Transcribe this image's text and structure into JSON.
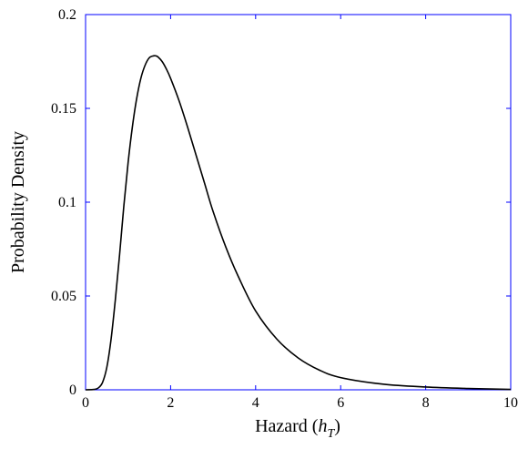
{
  "chart_data": {
    "type": "line",
    "title": "",
    "xlabel": "Hazard (",
    "xlabel_sub": "T",
    "xlabel_var": "h",
    "xlabel_close": ")",
    "ylabel": "Probability Density",
    "xlim": [
      0,
      10
    ],
    "ylim": [
      0,
      0.2
    ],
    "xticks": [
      0,
      2,
      4,
      6,
      8,
      10
    ],
    "xtick_labels": [
      "0",
      "2",
      "4",
      "6",
      "8",
      "10"
    ],
    "yticks": [
      0,
      0.05,
      0.1,
      0.15,
      0.2
    ],
    "ytick_labels": [
      "0",
      "0.05",
      "0.1",
      "0.15",
      "0.2"
    ],
    "grid": false,
    "colors": {
      "axis": "#0000ff",
      "line": "#000000"
    },
    "series": [
      {
        "x": [
          0,
          0.2,
          0.3,
          0.4,
          0.5,
          0.6,
          0.7,
          0.8,
          0.9,
          1.0,
          1.1,
          1.2,
          1.3,
          1.4,
          1.5,
          1.6,
          1.65,
          1.7,
          1.8,
          1.9,
          2.0,
          2.2,
          2.4,
          2.6,
          2.8,
          3.0,
          3.3,
          3.6,
          4.0,
          4.5,
          5.0,
          5.5,
          6.0,
          7.0,
          8.0,
          9.0,
          10.0
        ],
        "values": [
          0,
          0.0002,
          0.001,
          0.004,
          0.012,
          0.027,
          0.048,
          0.072,
          0.098,
          0.121,
          0.14,
          0.155,
          0.166,
          0.173,
          0.177,
          0.178,
          0.178,
          0.1775,
          0.175,
          0.171,
          0.166,
          0.154,
          0.14,
          0.125,
          0.11,
          0.095,
          0.076,
          0.06,
          0.042,
          0.027,
          0.017,
          0.0105,
          0.0065,
          0.003,
          0.0015,
          0.0007,
          0.0002
        ]
      }
    ]
  }
}
